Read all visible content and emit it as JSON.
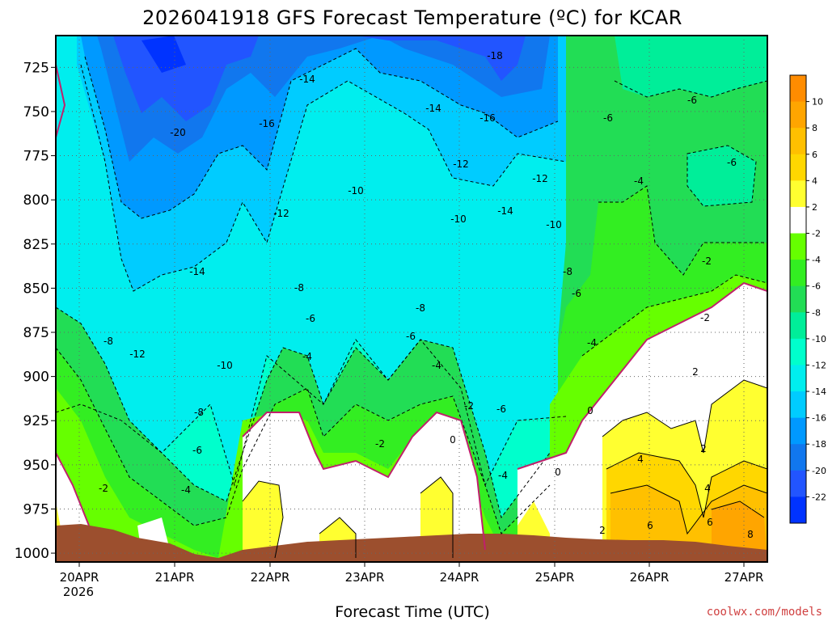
{
  "chart_data": {
    "type": "heatmap",
    "title": "2026041918 GFS Forecast Temperature (ºC) for KCAR",
    "xlabel": "Forecast Time (UTC)",
    "ylabel": "",
    "x_ticks": [
      "20APR",
      "21APR",
      "22APR",
      "23APR",
      "24APR",
      "25APR",
      "26APR",
      "27APR"
    ],
    "x_year": "2026",
    "y_ticks": [
      "725",
      "750",
      "775",
      "800",
      "825",
      "850",
      "875",
      "900",
      "925",
      "950",
      "975",
      "1000"
    ],
    "ylim": [
      1005,
      707
    ],
    "grid": true,
    "colorbar_ticks": [
      "10",
      "8",
      "6",
      "4",
      "2",
      "-2",
      "-4",
      "-6",
      "-8",
      "-10",
      "-12",
      "-14",
      "-16",
      "-18",
      "-20",
      "-22"
    ],
    "colorbar_colors": [
      "#ff8c00",
      "#ffa500",
      "#ffc000",
      "#ffd700",
      "#ffff30",
      "#ffffff",
      "#66ff00",
      "#33ee22",
      "#22dd55",
      "#00ee99",
      "#00ffcc",
      "#00eeee",
      "#00ccff",
      "#0099ff",
      "#1177ee",
      "#2255ff",
      "#0033ff"
    ],
    "contour_labels": [
      "-20",
      "-18",
      "-16",
      "-16",
      "-14",
      "-14",
      "-14",
      "-14",
      "-12",
      "-12",
      "-12",
      "-12",
      "-10",
      "-10",
      "-10",
      "-10",
      "-8",
      "-8",
      "-8",
      "-8",
      "-8",
      "-6",
      "-6",
      "-6",
      "-6",
      "-6",
      "-6",
      "-6",
      "-6",
      "-4",
      "-4",
      "-4",
      "-4",
      "-4",
      "-4",
      "-2",
      "-2",
      "-2",
      "-2",
      "-2",
      "0",
      "0",
      "0",
      "2",
      "2",
      "2",
      "4",
      "4",
      "6",
      "6",
      "8"
    ]
  },
  "credit": "coolwx.com/models"
}
